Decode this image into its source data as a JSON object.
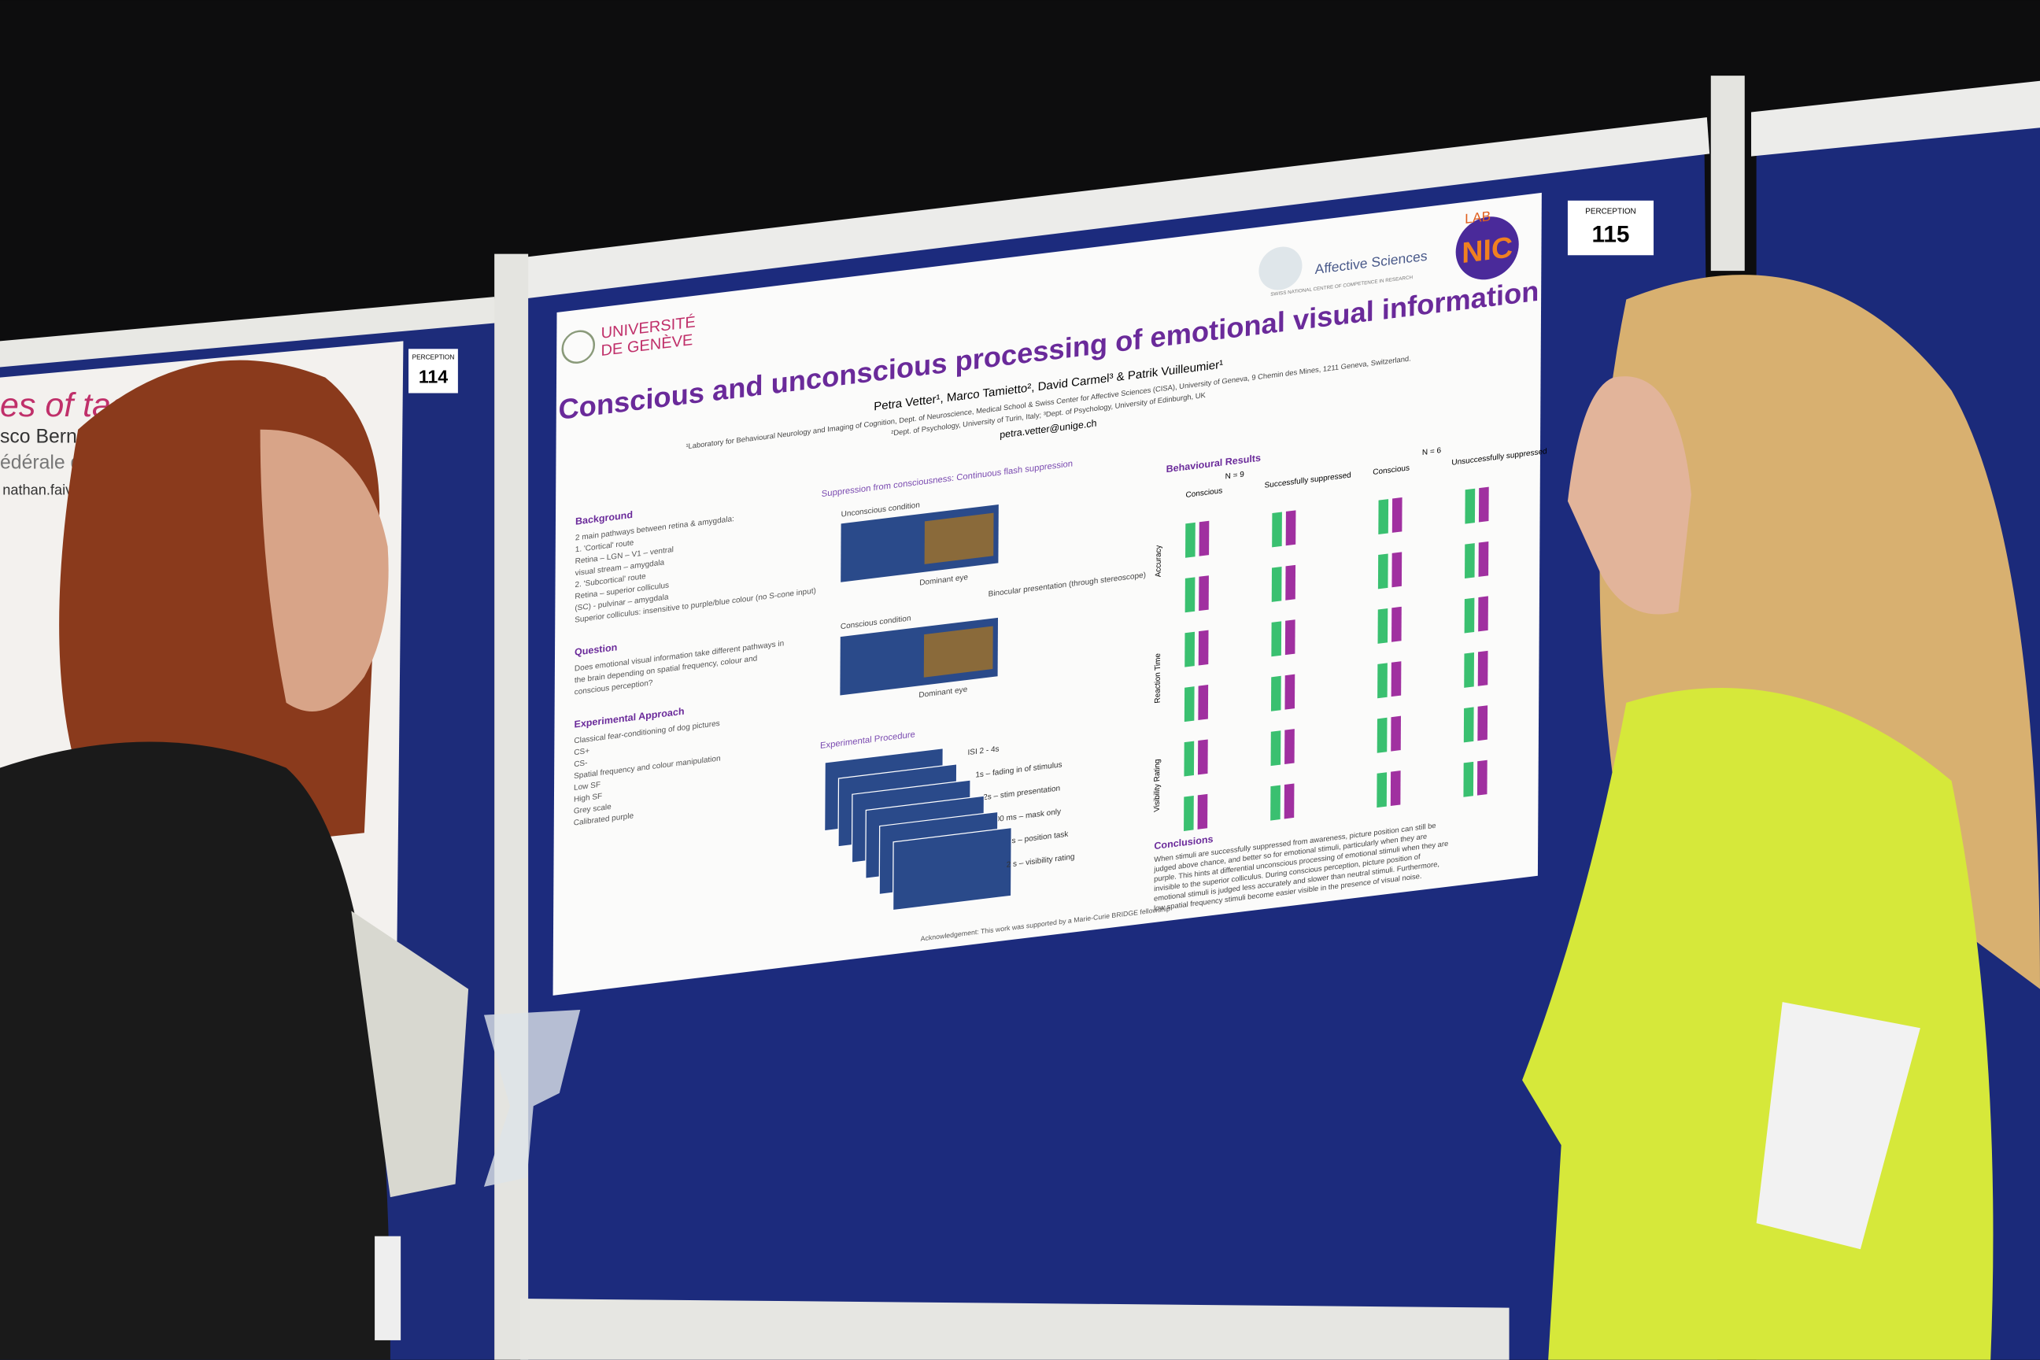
{
  "boards": {
    "left_number_label": "PERCEPTION",
    "left_number": "114",
    "right_number_label": "PERCEPTION",
    "right_number": "115",
    "left_poster_fragments": [
      "es of tac",
      "sco Bernas",
      "édérale d",
      "nathan.faivre"
    ]
  },
  "poster": {
    "university": [
      "UNIVERSITÉ",
      "DE GENÈVE"
    ],
    "affective": "Affective Sciences",
    "affective_sub": "SWISS NATIONAL CENTRE OF COMPETENCE IN RESEARCH",
    "lab": "LAB",
    "nic": "NIC",
    "title": "Conscious and unconscious processing of emotional visual information",
    "authors": "Petra Vetter¹, Marco Tamietto², David Carmel³ & Patrik Vuilleumier¹",
    "affiliations": [
      "¹Laboratory for Behavioural Neurology and Imaging of Cognition, Dept. of Neuroscience, Medical School & Swiss Center for Affective Sciences (CISA), University of Geneva, 9 Chemin des Mines, 1211 Geneva, Switzerland.",
      "²Dept. of Psychology, University of Turin, Italy; ³Dept. of Psychology, University of Edinburgh, UK"
    ],
    "email": "petra.vetter@unige.ch",
    "background": {
      "heading": "Background",
      "lines": [
        "2 main pathways between retina & amygdala:",
        "1. 'Cortical' route",
        "Retina – LGN – V1 – ventral",
        "visual stream – amygdala",
        "2. 'Subcortical' route",
        "Retina – superior colliculus",
        "(SC) - pulvinar – amygdala",
        "Superior colliculus: insensitive to purple/blue colour (no S-cone input)"
      ]
    },
    "question": {
      "heading": "Question",
      "lines": [
        "Does emotional visual information take different pathways in",
        "the brain depending on spatial frequency, colour and",
        "conscious perception?"
      ]
    },
    "approach": {
      "heading": "Experimental Approach",
      "lines": [
        "Classical fear-conditioning of dog pictures",
        "CS+",
        "CS-",
        "Spatial frequency and colour manipulation",
        "Low SF",
        "High SF",
        "Grey scale",
        "Calibrated purple"
      ]
    },
    "suppression": {
      "heading": "Suppression from consciousness: Continuous flash suppression",
      "labels": [
        "Unconscious condition",
        "Dominant eye",
        "Conscious condition",
        "Dominant eye",
        "Binocular presentation (through stereoscope)"
      ]
    },
    "procedure": {
      "heading": "Experimental Procedure",
      "steps": [
        "ISI 2 - 4s",
        "1s – fading in of stimulus",
        "2s – stim presentation",
        "200 ms – mask only",
        "1.8 s – position task",
        "2 s – visibility rating"
      ]
    },
    "results": {
      "heading": "Behavioural Results",
      "groups": [
        "N = 9",
        "N = 6"
      ],
      "columns": [
        "Conscious",
        "Successfully suppressed",
        "Conscious",
        "Unsuccessfully suppressed"
      ],
      "rows": [
        "Accuracy",
        "Reaction Time",
        "Visibility Rating"
      ]
    },
    "conclusions": {
      "heading": "Conclusions",
      "lines": [
        "When stimuli are successfully suppressed from awareness, picture position can still be",
        "judged above chance, and better so for emotional stimuli, particularly when they are",
        "purple. This hints at differential unconscious processing of emotional stimuli when they are",
        "invisible to the superior colliculus. During conscious perception, picture position of",
        "emotional stimuli is judged less accurately and slower than neutral stimuli. Furthermore,",
        "low spatial frequency stimuli become easier visible in the presence of visual noise."
      ]
    },
    "acknowledgement": "Acknowledgement: This work was supported by a Marie-Curie BRIDGE fellowship"
  }
}
